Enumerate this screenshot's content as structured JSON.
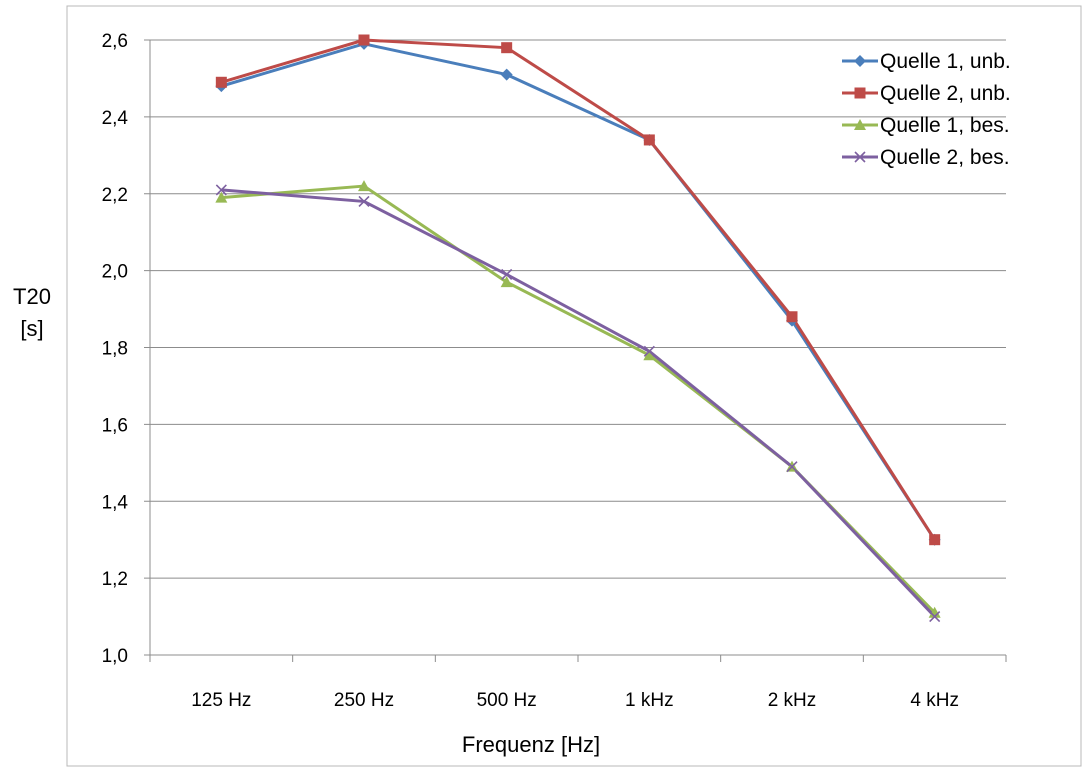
{
  "chart_data": {
    "type": "line",
    "xlabel": "Frequenz [Hz]",
    "ylabel_line1": "T20",
    "ylabel_line2": "[s]",
    "categories": [
      "125 Hz",
      "250 Hz",
      "500 Hz",
      "1 kHz",
      "2 kHz",
      "4 kHz"
    ],
    "ylim": [
      1.0,
      2.6
    ],
    "yticks": [
      "1,0",
      "1,2",
      "1,4",
      "1,6",
      "1,8",
      "2,0",
      "2,2",
      "2,4",
      "2,6"
    ],
    "grid": "horizontal",
    "legend_position": "top-right",
    "series": [
      {
        "name": "Quelle 1, unb.",
        "color": "#4a7ebb",
        "marker": "diamond",
        "values": [
          2.48,
          2.59,
          2.51,
          2.34,
          1.87,
          1.3
        ]
      },
      {
        "name": "Quelle 2, unb.",
        "color": "#be4b48",
        "marker": "square",
        "values": [
          2.49,
          2.6,
          2.58,
          2.34,
          1.88,
          1.3
        ]
      },
      {
        "name": "Quelle 1, bes.",
        "color": "#98b954",
        "marker": "triangle",
        "values": [
          2.19,
          2.22,
          1.97,
          1.78,
          1.49,
          1.11
        ]
      },
      {
        "name": "Quelle 2, bes.",
        "color": "#7d60a0",
        "marker": "x",
        "values": [
          2.21,
          2.18,
          1.99,
          1.79,
          1.49,
          1.1
        ]
      }
    ]
  }
}
